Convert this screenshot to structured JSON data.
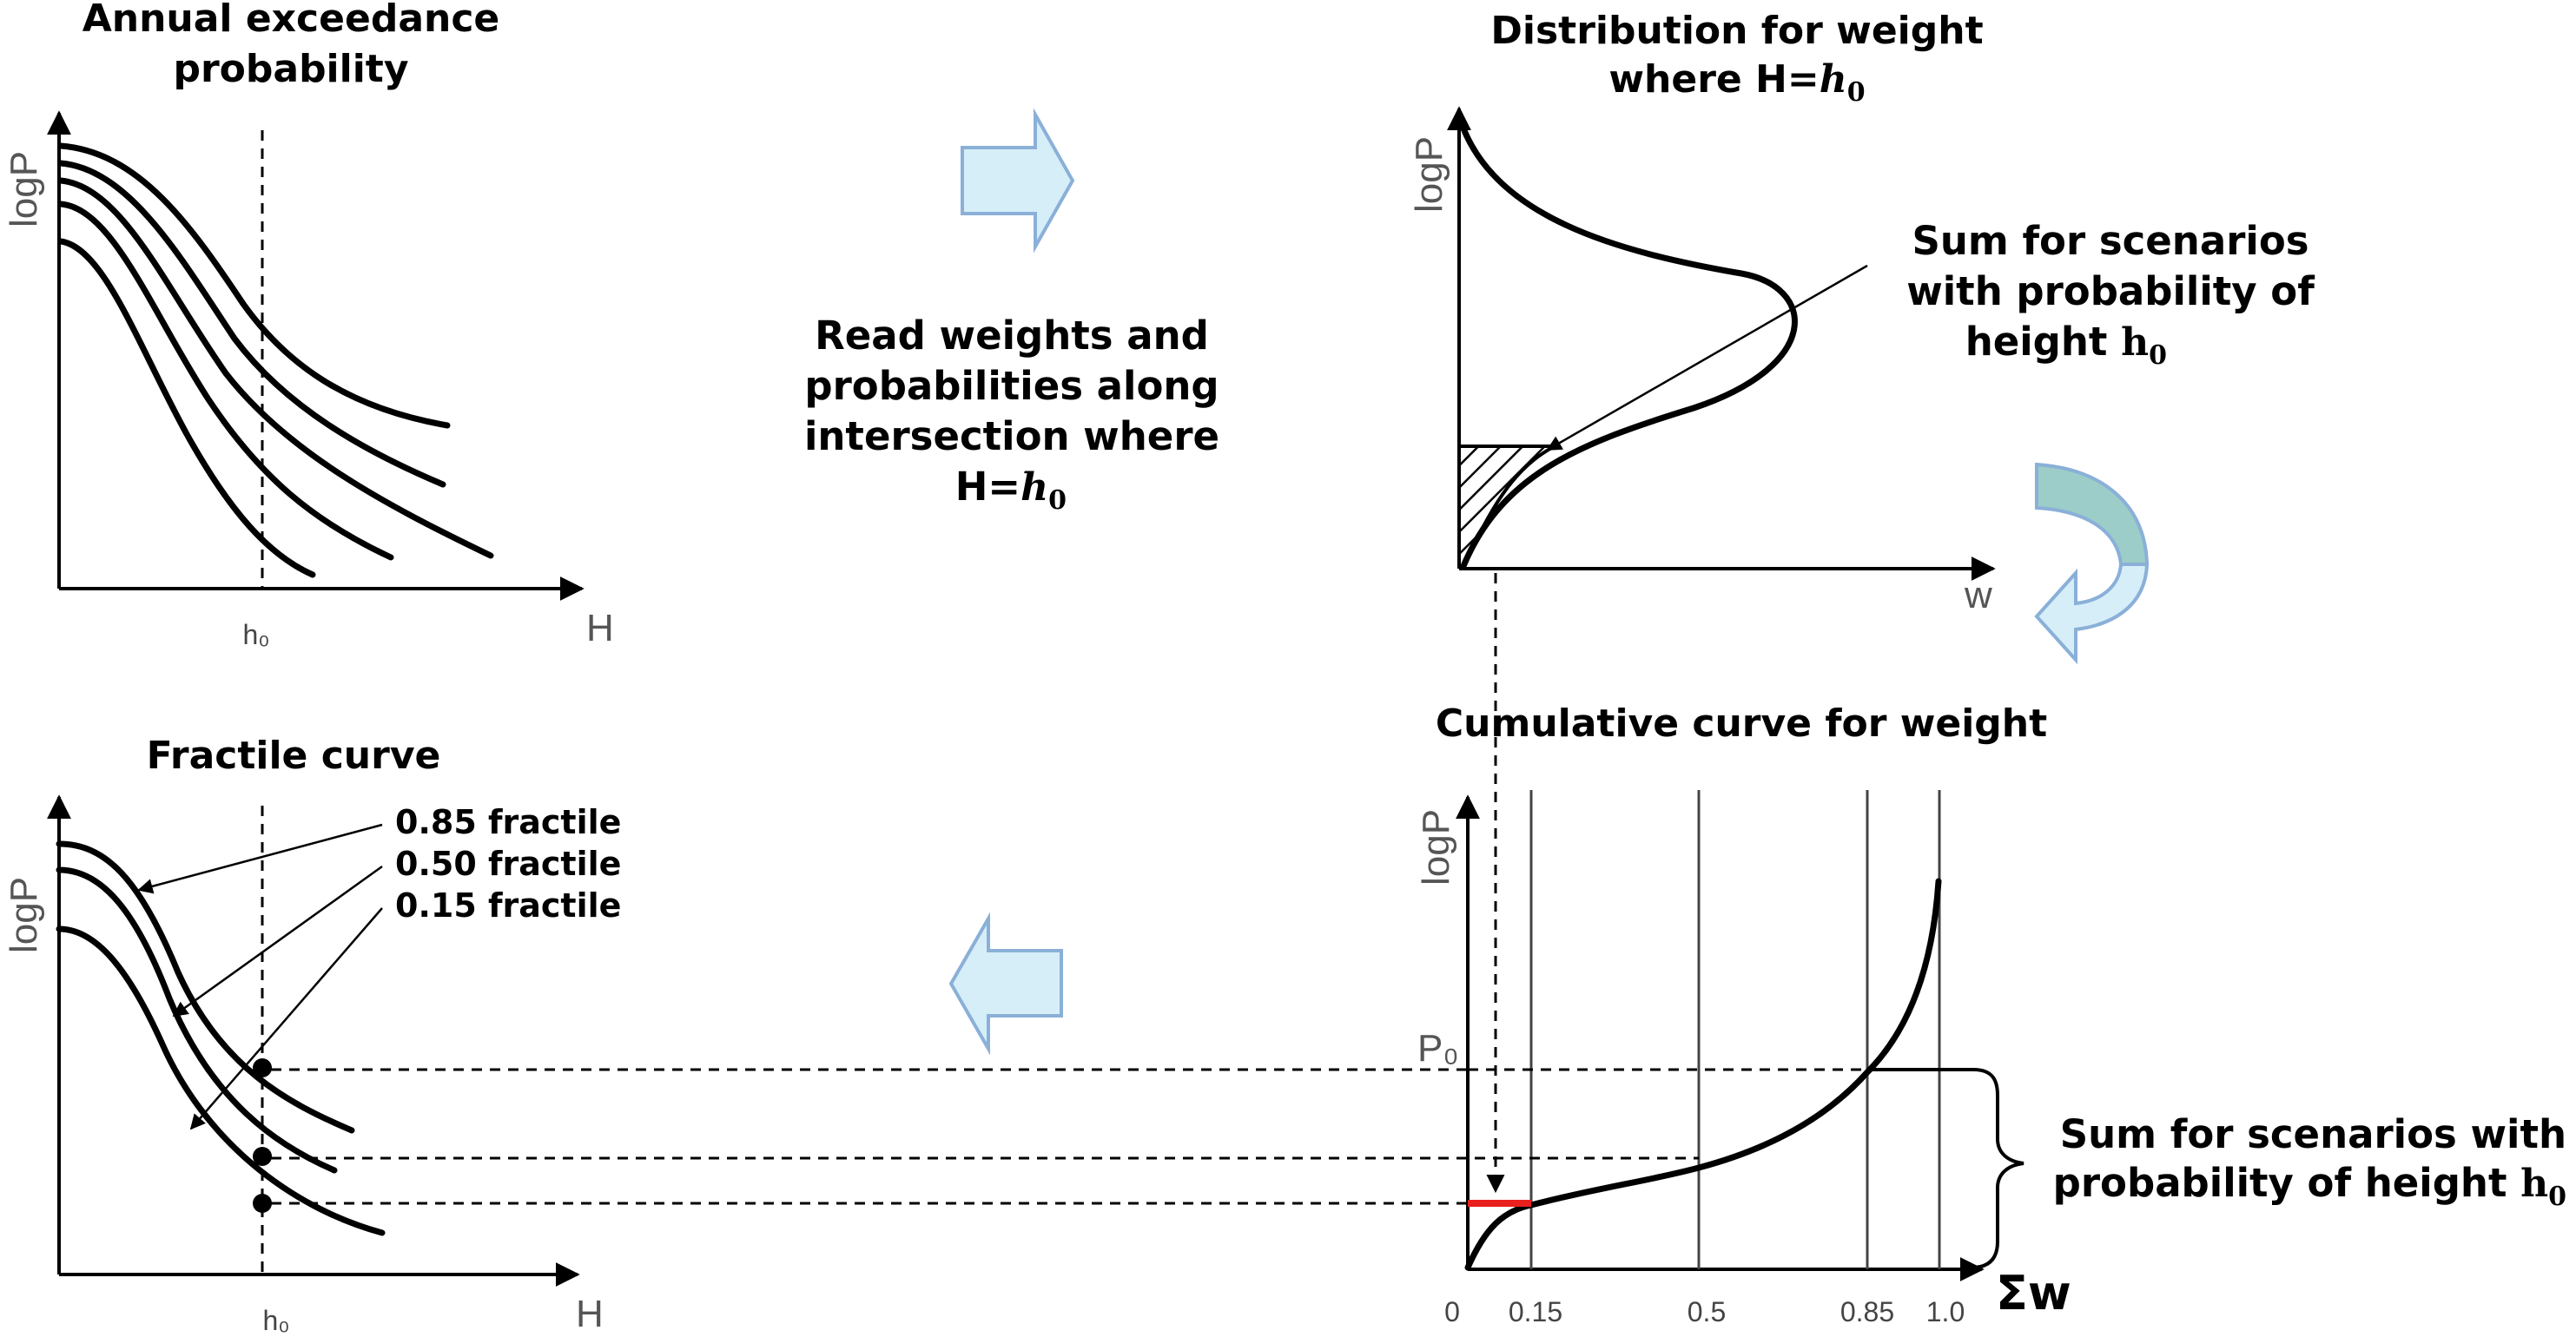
{
  "panels": {
    "annual": {
      "title_line1": "Annual exceedance",
      "title_line2": "probability",
      "y_label": "logP",
      "x_label": "H",
      "x_tick": "h₀"
    },
    "distribution": {
      "title_line1": "Distribution for weight",
      "title_line2_prefix": "where H=",
      "title_line2_var": "h",
      "title_line2_sub": "0",
      "y_label": "logP",
      "x_label": "w",
      "note_line1": "Sum for scenarios",
      "note_line2": "with probability of",
      "note_line3_prefix": "height ",
      "note_line3_var": "h",
      "note_line3_sub": "0"
    },
    "middle_text": {
      "line1": "Read weights and",
      "line2": "probabilities along",
      "line3": "intersection where",
      "line4_prefix": "H=",
      "line4_var": "h",
      "line4_sub": "0"
    },
    "fractile": {
      "title": "Fractile curve",
      "y_label": "logP",
      "x_label": "H",
      "x_tick": "h₀",
      "labels": [
        "0.85 fractile",
        "0.50 fractile",
        "0.15 fractile"
      ]
    },
    "cumulative": {
      "title": "Cumulative curve for weight",
      "y_label": "logP",
      "y_tick": "P₀",
      "x_label": "Σw",
      "x_ticks": [
        "0",
        "0.15",
        "0.5",
        "0.85",
        "1.0"
      ],
      "note_line1": "Sum for scenarios with",
      "note_line2_prefix": "probability of height ",
      "note_line2_var": "h",
      "note_line2_sub": "0"
    }
  },
  "colors": {
    "arrow_fill": "#d6eef8",
    "arrow_stroke": "#8ab0d8",
    "rotate_top": "#9ccdc8",
    "rotate_bottom": "#d6eef8",
    "highlight": "#e8201e"
  },
  "icons": [
    "right-arrow-icon",
    "left-arrow-icon",
    "rotate-arrow-icon"
  ]
}
